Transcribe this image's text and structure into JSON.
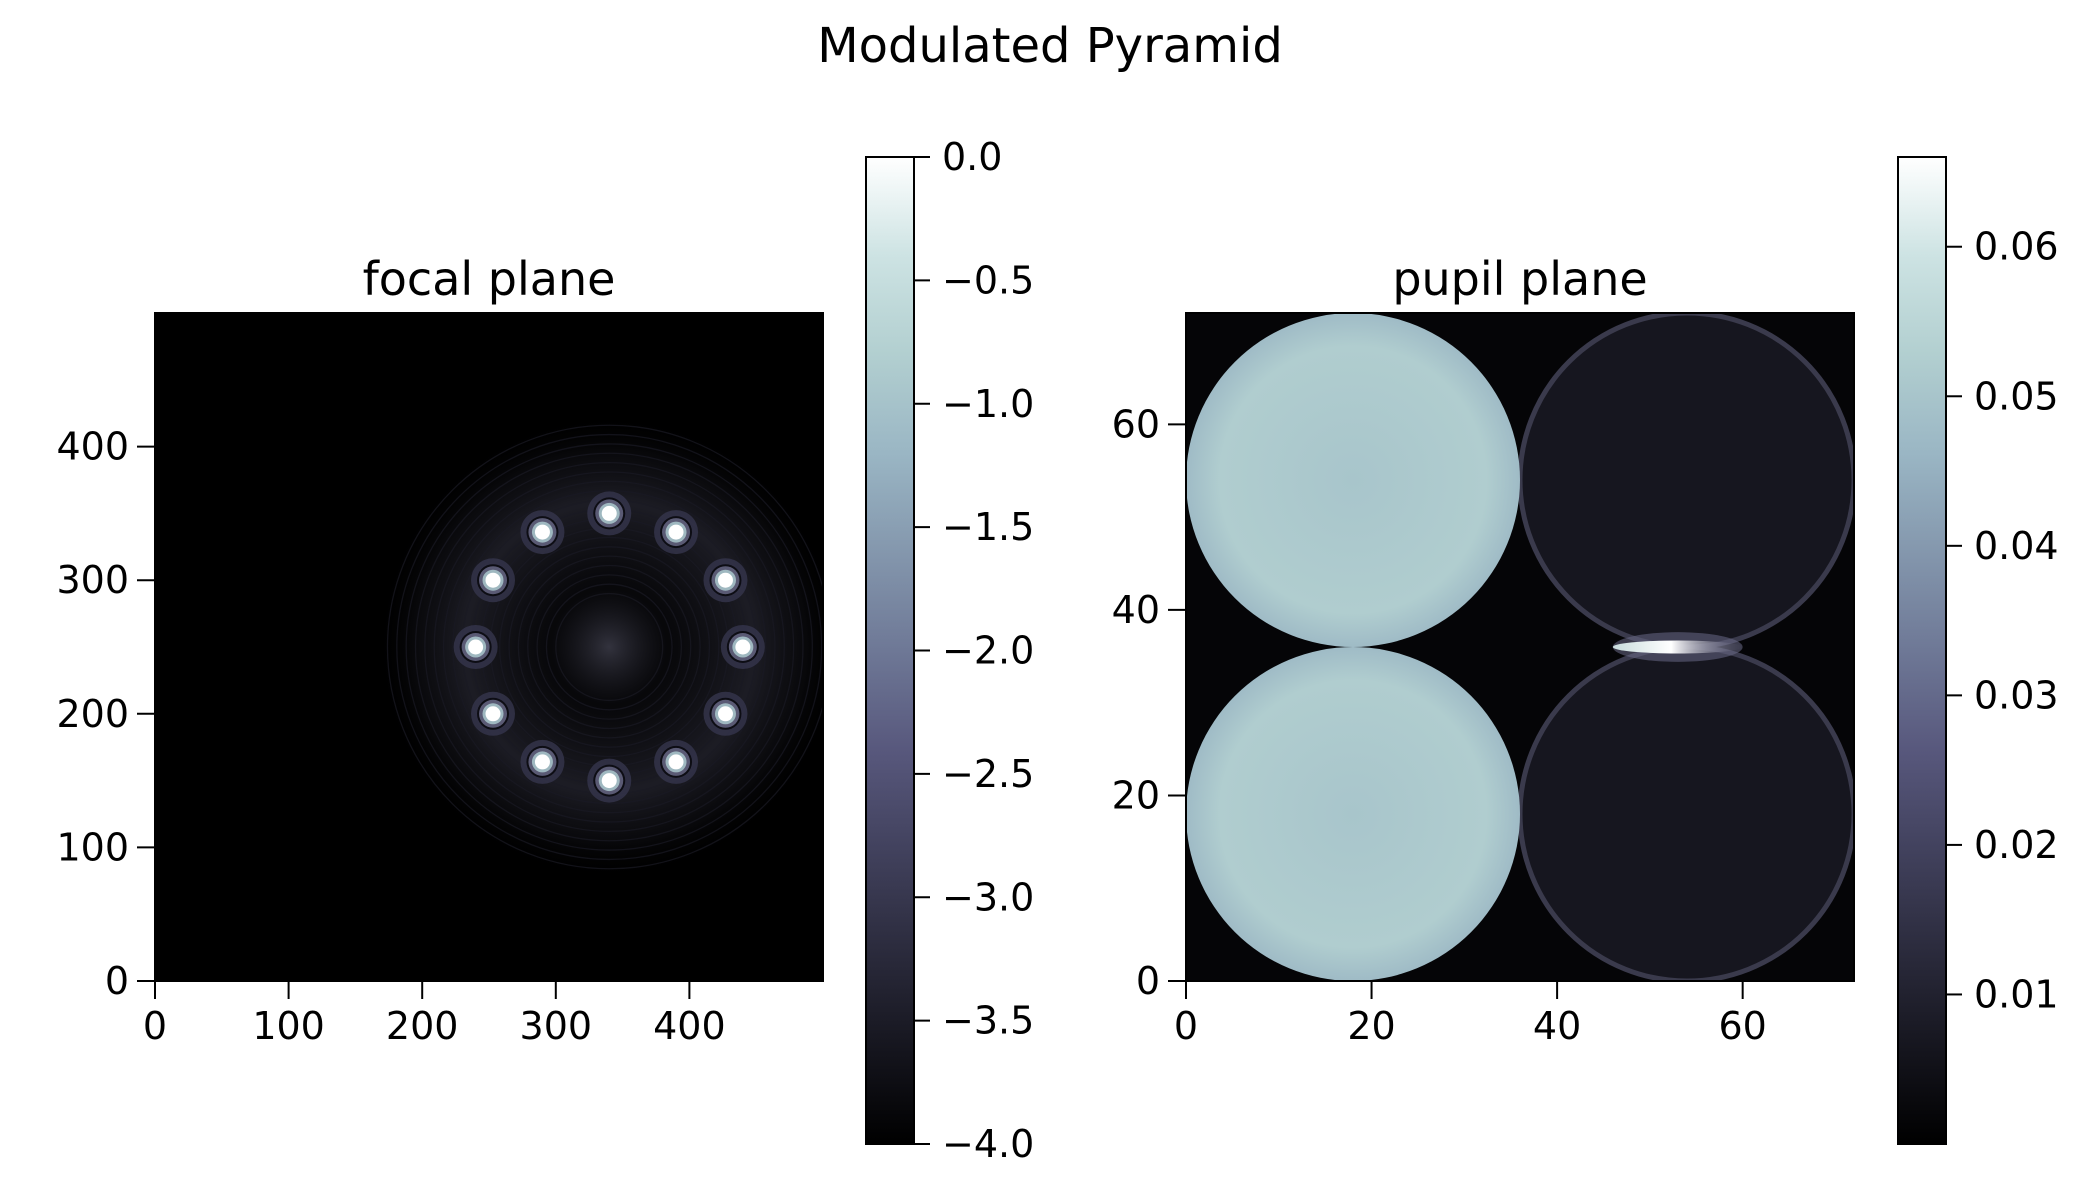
{
  "figure": {
    "title": "Modulated Pyramid"
  },
  "colors": {
    "colormap": [
      "#000000",
      "#16161f",
      "#2c2c3e",
      "#42425e",
      "#58587d",
      "#6e7896",
      "#8497ad",
      "#9ab6c4",
      "#b2cfd0",
      "#cde3e3",
      "#ffffff"
    ]
  },
  "chart_data": [
    {
      "type": "heatmap",
      "title": "focal plane",
      "xlabel": "",
      "ylabel": "",
      "xlim": [
        0,
        500
      ],
      "ylim": [
        0,
        500
      ],
      "xticks": [
        0,
        100,
        200,
        300,
        400
      ],
      "yticks": [
        0,
        100,
        200,
        300,
        400
      ],
      "grid": false,
      "colorbar": {
        "min": -4.0,
        "max": 0.0,
        "ticks": [
          0.0,
          -0.5,
          -1.0,
          -1.5,
          -2.0,
          -2.5,
          -3.0,
          -3.5,
          -4.0
        ],
        "tick_labels": [
          "0.0",
          "−0.5",
          "−1.0",
          "−1.5",
          "−2.0",
          "−2.5",
          "−3.0",
          "−3.5",
          "−4.0"
        ]
      },
      "ring_center": [
        340,
        250
      ],
      "psf_spots": [
        {
          "x": 340,
          "y": 350
        },
        {
          "x": 390,
          "y": 336
        },
        {
          "x": 427,
          "y": 300
        },
        {
          "x": 440,
          "y": 250
        },
        {
          "x": 427,
          "y": 200
        },
        {
          "x": 390,
          "y": 164
        },
        {
          "x": 340,
          "y": 150
        },
        {
          "x": 290,
          "y": 164
        },
        {
          "x": 253,
          "y": 200
        },
        {
          "x": 240,
          "y": 250
        },
        {
          "x": 253,
          "y": 300
        },
        {
          "x": 290,
          "y": 336
        }
      ]
    },
    {
      "type": "heatmap",
      "title": "pupil plane",
      "xlabel": "",
      "ylabel": "",
      "xlim": [
        0,
        72
      ],
      "ylim": [
        0,
        72
      ],
      "xticks": [
        0,
        20,
        40,
        60
      ],
      "yticks": [
        0,
        20,
        40,
        60
      ],
      "grid": false,
      "colorbar": {
        "min": 0.0,
        "max": 0.066,
        "ticks": [
          0.01,
          0.02,
          0.03,
          0.04,
          0.05,
          0.06
        ],
        "tick_labels": [
          "0.01",
          "0.02",
          "0.03",
          "0.04",
          "0.05",
          "0.06"
        ]
      },
      "pupils": [
        {
          "x": 18,
          "y": 54,
          "r": 18,
          "value": 0.052
        },
        {
          "x": 18,
          "y": 18,
          "r": 18,
          "value": 0.052
        },
        {
          "x": 54,
          "y": 54,
          "r": 18,
          "value": 0.004
        },
        {
          "x": 54,
          "y": 18,
          "r": 18,
          "value": 0.004
        }
      ],
      "bright_streak": {
        "x_from": 46,
        "x_to": 60,
        "y": 36,
        "value": 0.062
      }
    }
  ]
}
